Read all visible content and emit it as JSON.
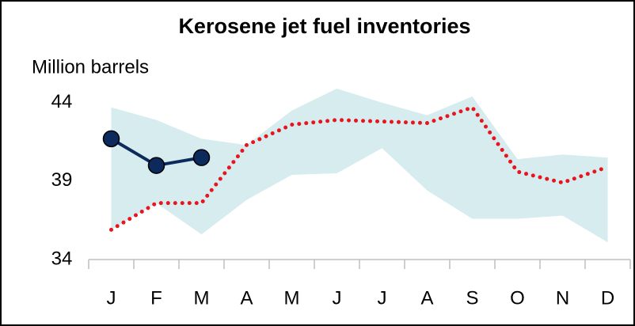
{
  "chart_data": {
    "type": "line",
    "title": "Kerosene jet fuel inventories",
    "y_label": "Million barrels",
    "categories": [
      "J",
      "F",
      "M",
      "A",
      "M",
      "J",
      "J",
      "A",
      "S",
      "O",
      "N",
      "D"
    ],
    "ylim": [
      34,
      45.2
    ],
    "yticks": [
      34,
      39,
      44
    ],
    "band": {
      "color": "#d6ecee",
      "high": [
        43.7,
        42.9,
        41.7,
        41.3,
        43.5,
        44.9,
        44.0,
        43.2,
        44.4,
        40.4,
        40.7,
        40.5
      ],
      "low": [
        35.9,
        37.6,
        35.6,
        37.8,
        39.4,
        39.5,
        41.1,
        38.4,
        36.6,
        36.6,
        36.8,
        35.1
      ]
    },
    "series": [
      {
        "color": "#e8141e",
        "style": "dotted",
        "values": [
          35.9,
          37.6,
          37.6,
          41.3,
          42.6,
          42.9,
          42.8,
          42.7,
          43.7,
          39.6,
          38.9,
          39.9
        ]
      },
      {
        "color": "#0d2a5c",
        "style": "markers",
        "values": [
          41.7,
          40.0,
          40.5,
          null,
          null,
          null,
          null,
          null,
          null,
          null,
          null,
          null
        ]
      }
    ]
  }
}
